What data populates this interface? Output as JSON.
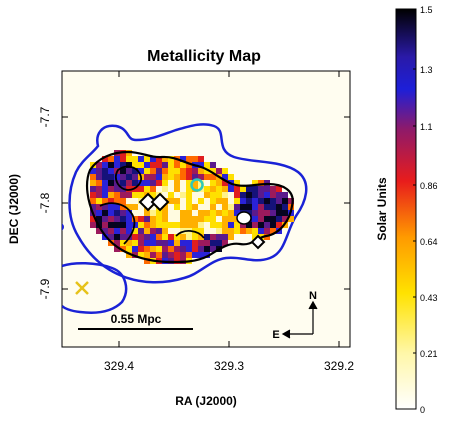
{
  "chart_data": {
    "type": "heatmap",
    "title": "Metallicity Map",
    "xlabel": "RA (J2000)",
    "ylabel": "DEC (J2000)",
    "x_ticks": [
      "329.4",
      "329.3",
      "329.2"
    ],
    "x_tick_values": [
      329.4,
      329.3,
      329.2
    ],
    "y_ticks": [
      "-7.7",
      "-7.8",
      "-7.9"
    ],
    "y_tick_values": [
      -7.7,
      -7.8,
      -7.9
    ],
    "xlim": [
      329.46,
      329.15
    ],
    "ylim": [
      -7.96,
      -7.63
    ],
    "scale_bar_label": "0.55 Mpc",
    "compass": {
      "north": "N",
      "east": "E"
    },
    "colorbar": {
      "label": "Solar Units",
      "ticks": [
        "1.5",
        "1.3",
        "1.1",
        "0.86",
        "0.64",
        "0.43",
        "0.21",
        "0"
      ],
      "tick_values": [
        1.5,
        1.3,
        1.1,
        0.86,
        0.64,
        0.43,
        0.21,
        0
      ],
      "range": [
        0,
        1.5
      ]
    },
    "colors": {
      "contour_blue": "#1a22d6",
      "contour_black": "#000000",
      "marker_cyan": "#2ec9b8",
      "marker_yellow": "#e6c21a",
      "map_background": "#fffdf0"
    }
  }
}
